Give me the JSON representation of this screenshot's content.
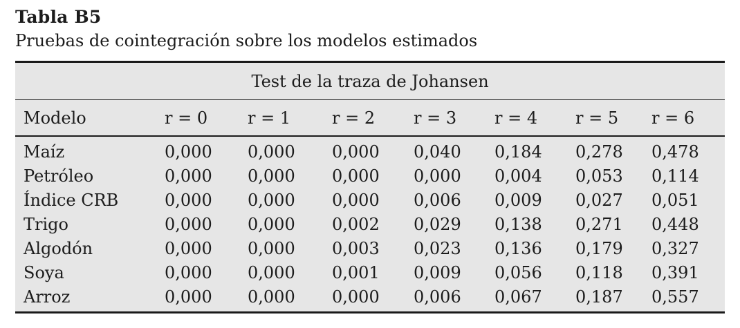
{
  "title": "Tabla B5",
  "subtitle": "Pruebas de cointegración sobre los modelos estimados",
  "colors": {
    "table_band_bg": "#e6e6e6",
    "rule_color": "#1a1a1a",
    "text_color": "#1c1c1c"
  },
  "table": {
    "span_header": "Test de la traza de Johansen",
    "columns": [
      "Modelo",
      "r = 0",
      "r = 1",
      "r = 2",
      "r = 3",
      "r = 4",
      "r = 5",
      "r = 6"
    ],
    "rows": [
      {
        "model": "Maíz",
        "values": [
          "0,000",
          "0,000",
          "0,000",
          "0,040",
          "0,184",
          "0,278",
          "0,478"
        ]
      },
      {
        "model": "Petróleo",
        "values": [
          "0,000",
          "0,000",
          "0,000",
          "0,000",
          "0,004",
          "0,053",
          "0,114"
        ]
      },
      {
        "model": "Índice CRB",
        "values": [
          "0,000",
          "0,000",
          "0,000",
          "0,006",
          "0,009",
          "0,027",
          "0,051"
        ]
      },
      {
        "model": "Trigo",
        "values": [
          "0,000",
          "0,000",
          "0,002",
          "0,029",
          "0,138",
          "0,271",
          "0,448"
        ]
      },
      {
        "model": "Algodón",
        "values": [
          "0,000",
          "0,000",
          "0,003",
          "0,023",
          "0,136",
          "0,179",
          "0,327"
        ]
      },
      {
        "model": "Soya",
        "values": [
          "0,000",
          "0,000",
          "0,001",
          "0,009",
          "0,056",
          "0,118",
          "0,391"
        ]
      },
      {
        "model": "Arroz",
        "values": [
          "0,000",
          "0,000",
          "0,000",
          "0,006",
          "0,067",
          "0,187",
          "0,557"
        ]
      }
    ]
  }
}
